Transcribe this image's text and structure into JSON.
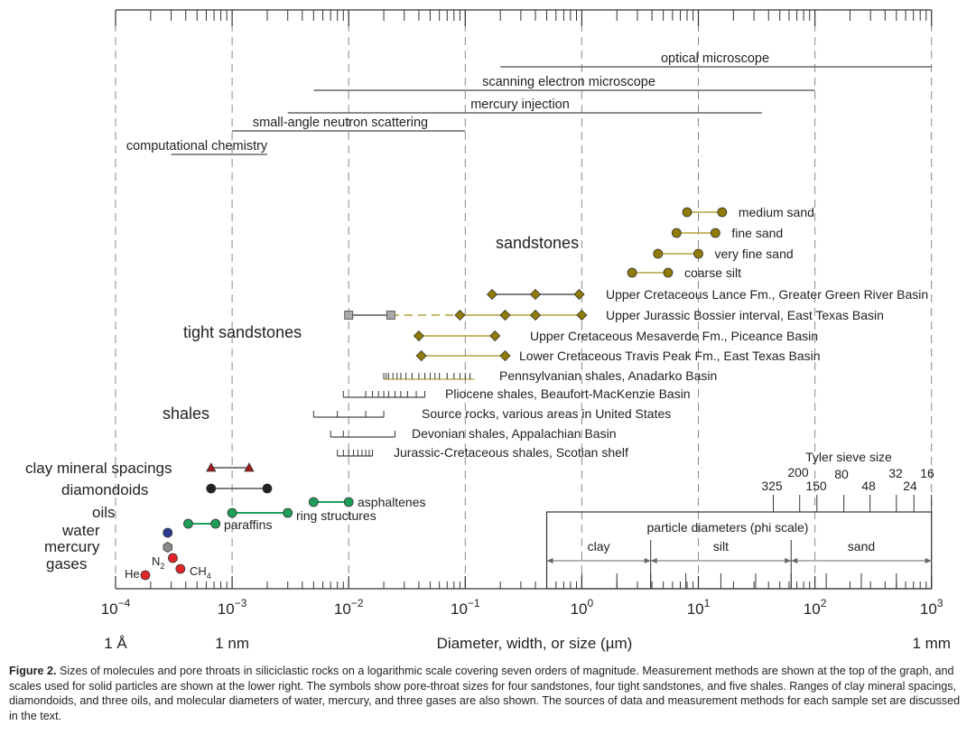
{
  "chart_data": {
    "type": "scatter",
    "x_scale": "log10",
    "x_range_um": [
      0.0001,
      1000
    ],
    "xlabel": "Diameter, width, or size (µm)",
    "x_ticks": [
      {
        "value": 0.0001,
        "label": "10",
        "exp": "−4"
      },
      {
        "value": 0.001,
        "label": "10",
        "exp": "−3"
      },
      {
        "value": 0.01,
        "label": "10",
        "exp": "−2"
      },
      {
        "value": 0.1,
        "label": "10",
        "exp": "−1"
      },
      {
        "value": 1,
        "label": "10",
        "exp": "0"
      },
      {
        "value": 10,
        "label": "10",
        "exp": "1"
      },
      {
        "value": 100,
        "label": "10",
        "exp": "2"
      },
      {
        "value": 1000,
        "label": "10",
        "exp": "3"
      }
    ],
    "unit_labels": [
      {
        "value": 0.0001,
        "label": "1 Å"
      },
      {
        "value": 0.001,
        "label": "1 nm"
      },
      {
        "value": 1000,
        "label": "1 mm"
      }
    ],
    "methods": [
      {
        "name": "optical microscope",
        "range": [
          0.2,
          1000
        ]
      },
      {
        "name": "scanning electron microscope",
        "range": [
          0.005,
          100
        ]
      },
      {
        "name": "mercury injection",
        "range": [
          0.003,
          35
        ]
      },
      {
        "name": "small-angle neutron scattering",
        "range": [
          0.001,
          0.1
        ]
      },
      {
        "name": "computational chemistry",
        "range": [
          0.0003,
          0.002
        ]
      }
    ],
    "groups": [
      {
        "name": "sandstones"
      },
      {
        "name": "tight sandstones"
      },
      {
        "name": "shales"
      }
    ],
    "sandstones": [
      {
        "name": "medium sand",
        "points": [
          8,
          16
        ]
      },
      {
        "name": "fine sand",
        "points": [
          6.5,
          14
        ]
      },
      {
        "name": "very fine sand",
        "points": [
          4.5,
          10
        ]
      },
      {
        "name": "coarse silt",
        "points": [
          2.7,
          5.5
        ]
      }
    ],
    "tight_sandstones": [
      {
        "name": "Upper Cretaceous Lance Fm., Greater Green River Basin",
        "points": [
          0.17,
          0.4,
          0.95
        ]
      },
      {
        "name": "Upper Jurassic Bossier interval, East Texas Basin",
        "squares": [
          0.01,
          0.023
        ],
        "points": [
          0.09,
          0.22,
          0.4,
          1.0
        ]
      },
      {
        "name": "Upper Cretaceous Mesaverde Fm., Piceance Basin",
        "points": [
          0.04,
          0.18
        ]
      },
      {
        "name": "Lower Cretaceous Travis Peak Fm., East Texas Basin",
        "points": [
          0.042,
          0.22
        ]
      }
    ],
    "shales": [
      {
        "name": "Pennsylvanian shales, Anadarko Basin",
        "range": [
          0.02,
          0.12
        ],
        "ticks": [
          0.02,
          0.021,
          0.022,
          0.024,
          0.026,
          0.028,
          0.031,
          0.035,
          0.04,
          0.045,
          0.05,
          0.055,
          0.06,
          0.07,
          0.08,
          0.09,
          0.1,
          0.11
        ]
      },
      {
        "name": "Pliocene shales, Beaufort-MacKenzie Basin",
        "range": [
          0.009,
          0.045
        ],
        "ticks": [
          0.009,
          0.014,
          0.016,
          0.018,
          0.02,
          0.022,
          0.025,
          0.028,
          0.032,
          0.038,
          0.045
        ]
      },
      {
        "name": "Source rocks, various areas in United States",
        "range": [
          0.005,
          0.02
        ],
        "ticks": [
          0.005,
          0.008,
          0.014,
          0.02
        ]
      },
      {
        "name": "Devonian shales, Appalachian Basin",
        "range": [
          0.007,
          0.025
        ],
        "ticks": [
          0.007,
          0.009,
          0.025
        ]
      },
      {
        "name": "Jurassic-Cretaceous shales, Scotian shelf",
        "range": [
          0.008,
          0.016
        ],
        "ticks": [
          0.008,
          0.009,
          0.01,
          0.011,
          0.012,
          0.013,
          0.014,
          0.015,
          0.016
        ]
      }
    ],
    "molecules": [
      {
        "name": "clay mineral spacings",
        "points": [
          0.00066,
          0.0014
        ],
        "marker": "triangle",
        "color": "#a01c1c"
      },
      {
        "name": "diamondoids",
        "points": [
          0.00066,
          0.002
        ],
        "marker": "circle",
        "color": "#222222"
      },
      {
        "name": "paraffins",
        "points": [
          0.00042,
          0.00072
        ],
        "marker": "circle",
        "color": "#1e9e5a"
      },
      {
        "name": "ring structures",
        "points": [
          0.001,
          0.003
        ],
        "marker": "circle",
        "color": "#1e9e5a"
      },
      {
        "name": "asphaltenes",
        "points": [
          0.005,
          0.01
        ],
        "marker": "circle",
        "color": "#1e9e5a"
      },
      {
        "name": "water",
        "points": [
          0.00028
        ],
        "marker": "circle",
        "color": "#2b3a8f"
      },
      {
        "name": "mercury",
        "points": [
          0.00028
        ],
        "marker": "hexagon",
        "color": "#8a8a8a"
      },
      {
        "name": "N2",
        "points": [
          0.00031
        ],
        "marker": "circle",
        "color": "#e0262b"
      },
      {
        "name": "CH4",
        "points": [
          0.00036
        ],
        "marker": "circle",
        "color": "#e0262b"
      },
      {
        "name": "He",
        "points": [
          0.00018
        ],
        "marker": "circle",
        "color": "#e0262b"
      }
    ],
    "left_labels": {
      "clay": "clay mineral spacings",
      "diamondoids": "diamondoids",
      "oils": "oils",
      "water": "water",
      "mercury": "mercury",
      "gases": "gases"
    },
    "point_labels": {
      "paraffins": "paraffins",
      "ring": "ring structures",
      "asphaltenes": "asphaltenes",
      "N": "N",
      "N_sub": "2",
      "CH": "CH",
      "CH_sub": "4",
      "He": "He"
    },
    "tyler_sieve": {
      "title": "Tyler sieve size",
      "sizes": [
        {
          "label": "325",
          "um": 44
        },
        {
          "label": "200",
          "um": 74
        },
        {
          "label": "150",
          "um": 104
        },
        {
          "label": "80",
          "um": 177
        },
        {
          "label": "48",
          "um": 297
        },
        {
          "label": "32",
          "um": 500
        },
        {
          "label": "24",
          "um": 707
        },
        {
          "label": "16",
          "um": 1000
        }
      ]
    },
    "phi_scale": {
      "title": "particle diameters (phi scale)",
      "range": [
        0.5,
        1000
      ],
      "classes": [
        {
          "name": "clay",
          "range": [
            0.5,
            3.9
          ]
        },
        {
          "name": "silt",
          "range": [
            3.9,
            62.5
          ]
        },
        {
          "name": "sand",
          "range": [
            62.5,
            1000
          ]
        }
      ],
      "ticks": [
        1,
        2,
        3.9,
        7.8,
        15.6,
        31,
        62.5,
        125,
        250,
        500
      ]
    },
    "colors": {
      "sandstone_marker": "#8f7b06",
      "sandstone_line": "#b5a23c",
      "green": "#1e9e5a",
      "grid": "#888888"
    }
  },
  "caption": {
    "label": "Figure 2.",
    "text": "Sizes of molecules and pore throats in siliciclastic rocks on a logarithmic scale covering seven orders of magnitude. Measurement methods are shown at the top of the graph, and scales used for solid particles are shown at the lower right. The symbols show pore-throat sizes for four sandstones, four tight sandstones, and five shales. Ranges of clay mineral spacings, diamondoids, and three oils, and molecular diameters of water, mercury, and three gases are also shown. The sources of data and measurement methods for each sample set are discussed in the text."
  }
}
